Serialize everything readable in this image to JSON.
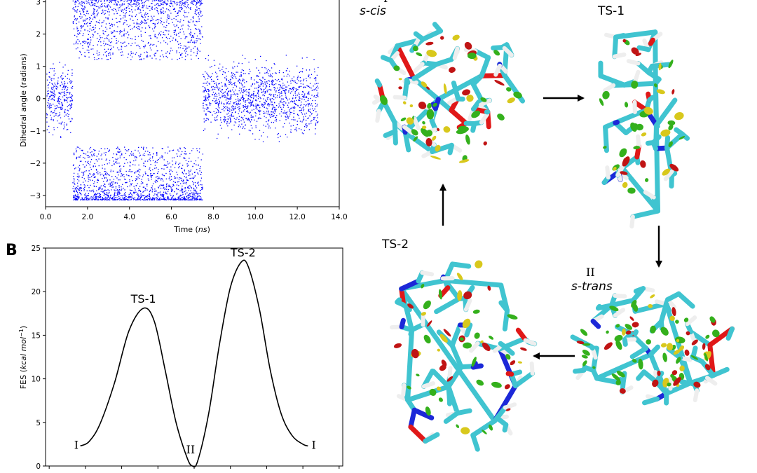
{
  "panel_b_letter": "B",
  "chart_data": [
    {
      "type": "scatter",
      "title": "",
      "xlabel": "Time (ns)",
      "xlabel_plain": "Time (",
      "xlabel_ital": "ns",
      "xlabel_close": ")",
      "ylabel": "Dihedral angle (radians)",
      "xlim": [
        0,
        14
      ],
      "ylim": [
        -3.35,
        3.1
      ],
      "xticks": [
        "0.0",
        "2.0",
        "4.0",
        "6.0",
        "8.0",
        "10.0",
        "12.0",
        "14.0"
      ],
      "yticks": [
        "-3",
        "-2",
        "-1",
        "0",
        "1",
        "2",
        "3"
      ],
      "color": "#0000ff",
      "grid": false,
      "segments": [
        {
          "x_start": 0.05,
          "x_end": 1.3,
          "state": "near 0",
          "y_range": [
            -1.5,
            1.3
          ]
        },
        {
          "x_start": 1.3,
          "x_end": 7.5,
          "state": "near +pi",
          "y_range": [
            1.2,
            3.14
          ]
        },
        {
          "x_start": 1.3,
          "x_end": 7.5,
          "state": "near -pi",
          "y_range": [
            -3.14,
            -1.5
          ]
        },
        {
          "x_start": 7.5,
          "x_end": 13.0,
          "state": "near 0",
          "y_range": [
            -1.6,
            1.5
          ]
        }
      ]
    },
    {
      "type": "line",
      "title": "",
      "xlabel": "",
      "ylabel": "FES (kcal mol−1)",
      "ylabel_plain": "FES (",
      "ylabel_ital": "kcal mol",
      "ylabel_sup": "−1",
      "ylabel_close": ")",
      "xlim": [
        -4.1,
        4.1
      ],
      "ylim": [
        0,
        25
      ],
      "yticks": [
        "0",
        "5",
        "10",
        "15",
        "20",
        "25"
      ],
      "color": "#000000",
      "x": [
        -3.14,
        -2.9,
        -2.6,
        -2.2,
        -1.8,
        -1.4,
        -1.1,
        -0.8,
        -0.5,
        -0.2,
        -0.05,
        0.1,
        0.4,
        0.7,
        1.0,
        1.3,
        1.5,
        1.8,
        2.1,
        2.4,
        2.7,
        3.0,
        3.14
      ],
      "y": [
        2.3,
        2.8,
        4.8,
        9.5,
        15.5,
        18.1,
        16.6,
        11.0,
        5.0,
        1.0,
        0.0,
        0.6,
        6.0,
        14.0,
        20.5,
        23.4,
        22.8,
        18.0,
        11.0,
        6.0,
        3.5,
        2.5,
        2.3
      ],
      "annotations": [
        {
          "text": "TS-1",
          "x": -1.4,
          "y": 18.1
        },
        {
          "text": "TS-2",
          "x": 1.35,
          "y": 23.4
        },
        {
          "text": "I",
          "x": -3.25,
          "y": 2.3
        },
        {
          "text": "II",
          "x": -0.1,
          "y": 0.0
        },
        {
          "text": "I",
          "x": 3.3,
          "y": 2.3
        }
      ]
    }
  ],
  "structures": {
    "scis": {
      "roman": "I",
      "name": "s-cis"
    },
    "ts1": {
      "name": "TS-1"
    },
    "strans": {
      "roman": "II",
      "name": "s-trans"
    },
    "ts2": {
      "name": "TS-2"
    },
    "colors": {
      "carbon": "#40c4d0",
      "hydrogen": "#eeeeee",
      "oxygen": "#e01818",
      "nitrogen": "#1c28d8",
      "surface_green": "#34b01c",
      "surface_yellow": "#d8c81c",
      "surface_red": "#c01414"
    }
  }
}
